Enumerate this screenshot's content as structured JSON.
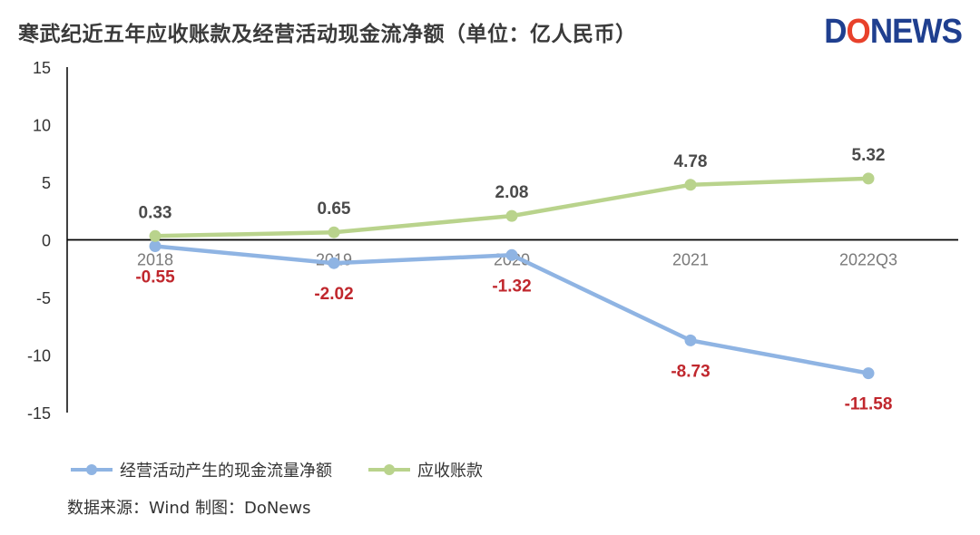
{
  "title": "寒武纪近五年应收账款及经营活动现金流净额（单位：亿人民币）",
  "logo": {
    "d": "D",
    "o": "O",
    "rest": "NEWS"
  },
  "source_note": "数据来源：Wind    制图：DoNews",
  "colors": {
    "cashflow": "#8fb4e3",
    "receivables": "#b9d38c",
    "negative_label": "#c0272d",
    "positive_label": "#4a4a4a"
  },
  "chart_data": {
    "type": "line",
    "title": "寒武纪近五年应收账款及经营活动现金流净额（单位：亿人民币）",
    "categories": [
      "2018",
      "2019",
      "2020",
      "2021",
      "2022Q3"
    ],
    "series": [
      {
        "name": "经营活动产生的现金流量净额",
        "values": [
          -0.55,
          -2.02,
          -1.32,
          -8.73,
          -11.58
        ],
        "labels": [
          "-0.55",
          "-2.02",
          "-1.32",
          "-8.73",
          "-11.58"
        ]
      },
      {
        "name": "应收账款",
        "values": [
          0.33,
          0.65,
          2.08,
          4.78,
          5.32
        ],
        "labels": [
          "0.33",
          "0.65",
          "2.08",
          "4.78",
          "5.32"
        ]
      }
    ],
    "yticks": [
      "15",
      "10",
      "5",
      "0",
      "-5",
      "-10",
      "-15"
    ],
    "ylim": [
      -15,
      15
    ],
    "xlabel": "",
    "ylabel": "",
    "legend_position": "bottom-left"
  }
}
